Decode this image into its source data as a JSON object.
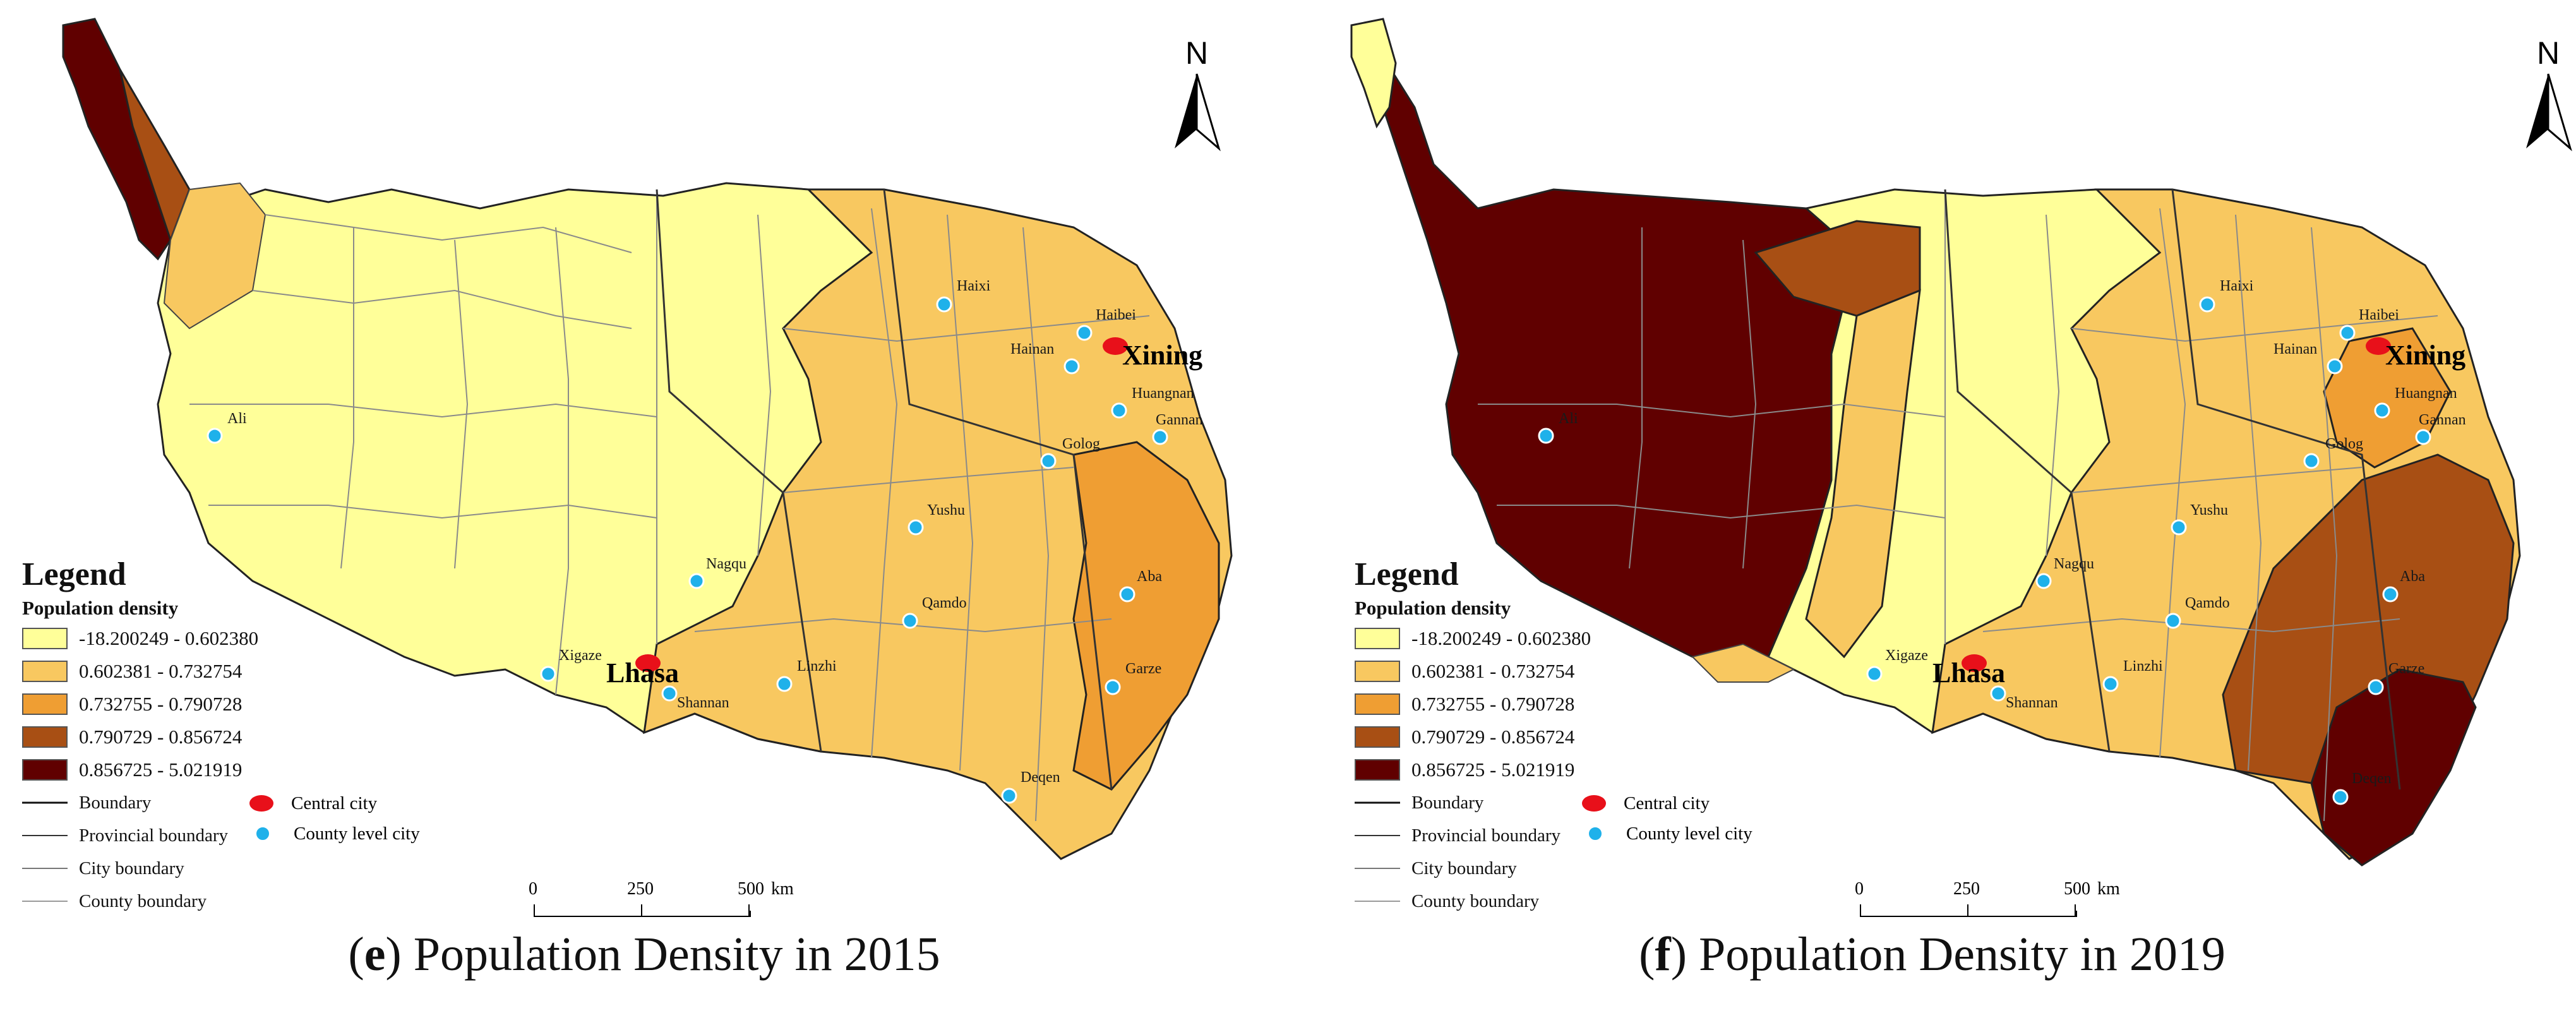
{
  "panels": [
    {
      "caption_letter": "e",
      "caption_text": "Population Density in 2015"
    },
    {
      "caption_letter": "f",
      "caption_text": "Population Density in 2019"
    }
  ],
  "legend": {
    "title": "Legend",
    "subtitle": "Population density",
    "classes": [
      {
        "label": "-18.200249 - 0.602380",
        "color": "#ffff99"
      },
      {
        "label": "0.602381 - 0.732754",
        "color": "#f8c860"
      },
      {
        "label": "0.732755 - 0.790728",
        "color": "#ef9e33"
      },
      {
        "label": "0.790729 - 0.856724",
        "color": "#a84f14"
      },
      {
        "label": "0.856725 - 5.021919",
        "color": "#600000"
      }
    ],
    "lines": [
      {
        "label": "Boundary",
        "color": "#111111"
      },
      {
        "label": "Provincial boundary",
        "color": "#333333"
      },
      {
        "label": "City boundary",
        "color": "#777777"
      },
      {
        "label": "County boundary",
        "color": "#9a9a9a"
      }
    ],
    "symbols": [
      {
        "label": "Central city",
        "color": "#e8101a"
      },
      {
        "label": "County level city",
        "color": "#1fb1ea"
      }
    ]
  },
  "north_label": "N",
  "scale": {
    "ticks": [
      "0",
      "250",
      "500"
    ],
    "unit": "km"
  },
  "places": {
    "central": [
      "Lhasa",
      "Xining"
    ],
    "county": [
      "Haixi",
      "Haibei",
      "Hainan",
      "Huangnan",
      "Gannan",
      "Ali",
      "Golog",
      "Yushu",
      "Nagqu",
      "Aba",
      "Qamdo",
      "Xigaze",
      "Linzhi",
      "Shannan",
      "Garze",
      "Deqen"
    ]
  }
}
